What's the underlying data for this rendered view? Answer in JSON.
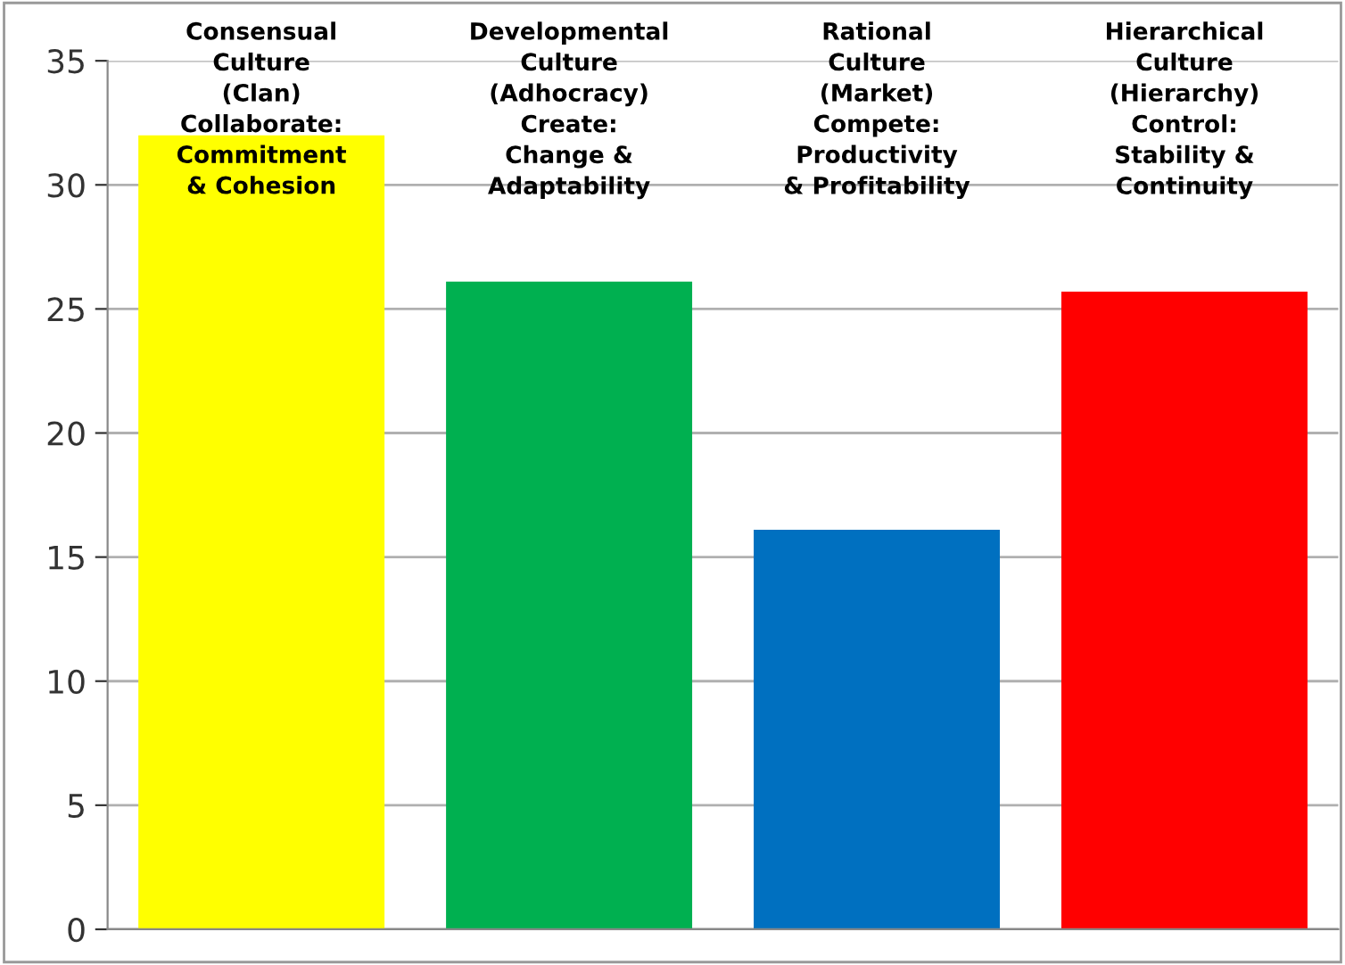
{
  "chart_data": {
    "type": "bar",
    "categories": [
      null,
      null,
      null,
      null
    ],
    "values": [
      32.0,
      26.1,
      16.1,
      25.7
    ],
    "colors": [
      "#ffff00",
      "#00b050",
      "#0070c0",
      "#ff0000"
    ],
    "ylim": [
      0,
      35
    ],
    "yticks": [
      0,
      5,
      10,
      15,
      20,
      25,
      30,
      35
    ],
    "grid": "y",
    "annotations": [
      "Consensual\nCulture\n(Clan)\nCollaborate:\nCommitment\n& Cohesion",
      "Developmental\nCulture\n(Adhocracy)\nCreate:\nChange &\nAdaptability",
      "Rational\nCulture\n(Market)\nCompete:\nProductivity\n& Profitability",
      "Hierarchical\nCulture\n(Hierarchy)\nControl:\nStability &\nContinuity"
    ]
  }
}
